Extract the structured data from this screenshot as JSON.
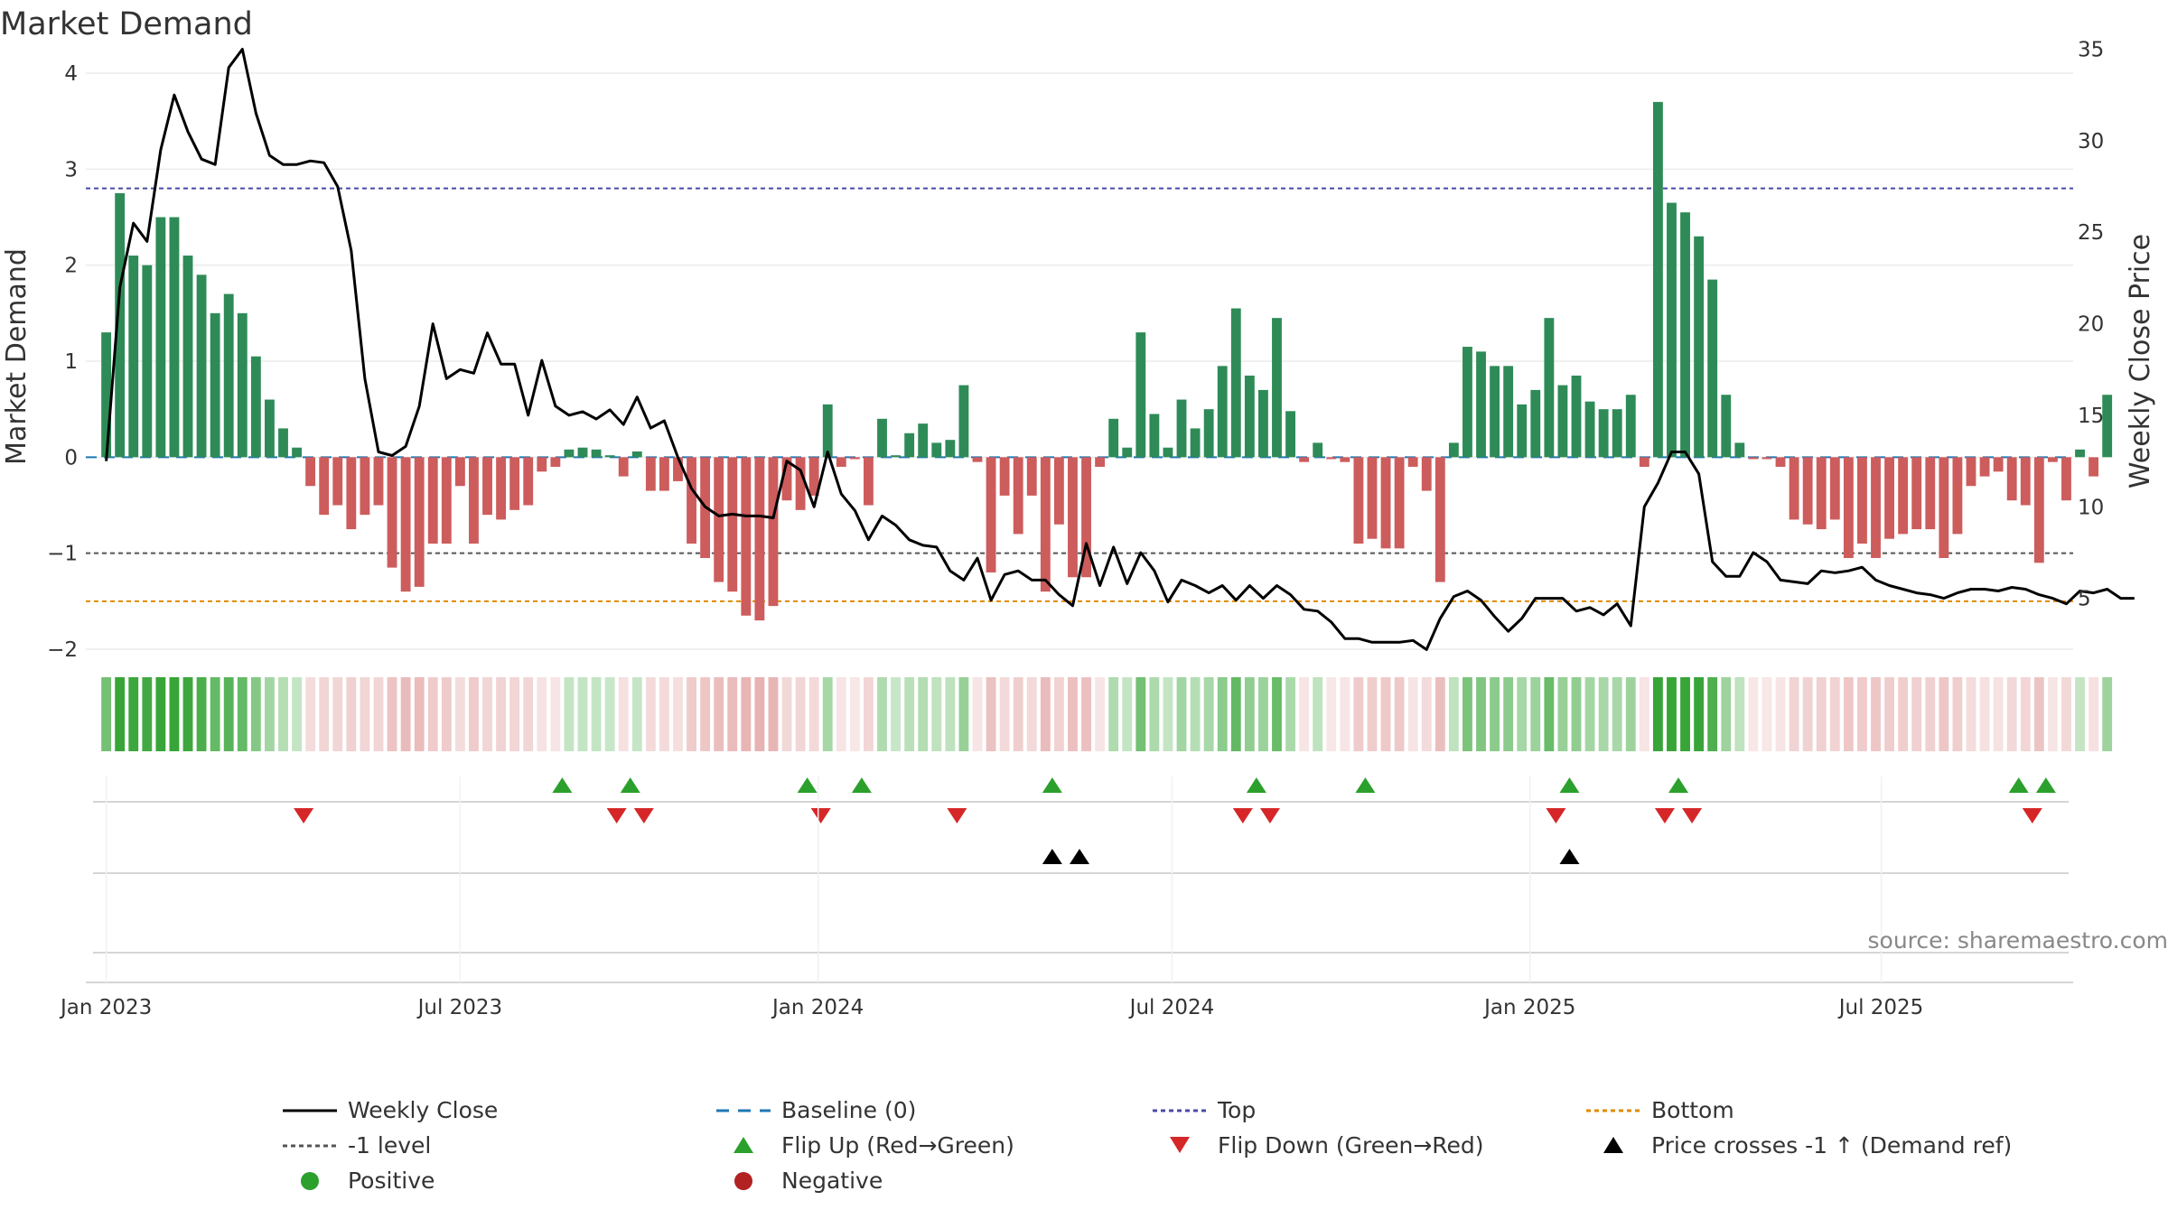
{
  "chart_data": {
    "type": "bar+line",
    "title": "Market Demand",
    "ylabel_left": "Market Demand",
    "ylabel_right": "Weekly Close Price",
    "ylim_left": [
      -2,
      4
    ],
    "yticks_left": [
      "−2",
      "−1",
      "0",
      "1",
      "2",
      "3",
      "4"
    ],
    "yticks_left_values": [
      -2,
      -1,
      0,
      1,
      2,
      3,
      4
    ],
    "ylim_right": [
      0,
      37
    ],
    "yticks_right": [
      "5",
      "10",
      "15",
      "20",
      "25",
      "30",
      "35"
    ],
    "yticks_right_values": [
      5,
      10,
      15,
      20,
      25,
      30,
      35
    ],
    "x_week_range": [
      -1.5,
      144.5
    ],
    "xticks": [
      {
        "label": "Jan 2023",
        "week": 0
      },
      {
        "label": "Jul 2023",
        "week": 26
      },
      {
        "label": "Jan 2024",
        "week": 52.3
      },
      {
        "label": "Jul 2024",
        "week": 78.3
      },
      {
        "label": "Jan 2025",
        "week": 104.6
      },
      {
        "label": "Jul 2025",
        "week": 130.4
      }
    ],
    "reference_lines": {
      "top": 2.8,
      "minus_one": -1,
      "bottom": -1.5,
      "baseline": 0
    },
    "demand": [
      1.3,
      2.75,
      2.1,
      2.0,
      2.5,
      2.5,
      2.1,
      1.9,
      1.5,
      1.7,
      1.5,
      1.05,
      0.6,
      0.3,
      0.1,
      -0.3,
      -0.6,
      -0.5,
      -0.75,
      -0.6,
      -0.5,
      -1.15,
      -1.4,
      -1.35,
      -0.9,
      -0.9,
      -0.3,
      -0.9,
      -0.6,
      -0.65,
      -0.55,
      -0.5,
      -0.15,
      -0.1,
      0.08,
      0.1,
      0.08,
      0.02,
      -0.2,
      0.06,
      -0.35,
      -0.35,
      -0.25,
      -0.9,
      -1.05,
      -1.3,
      -1.4,
      -1.65,
      -1.7,
      -1.55,
      -0.45,
      -0.55,
      -0.4,
      0.55,
      -0.1,
      -0.02,
      -0.5,
      0.4,
      0.02,
      0.25,
      0.35,
      0.15,
      0.18,
      0.75,
      -0.05,
      -1.2,
      -0.4,
      -0.8,
      -0.4,
      -1.4,
      -0.7,
      -1.25,
      -1.25,
      -0.1,
      0.4,
      0.1,
      1.3,
      0.45,
      0.1,
      0.6,
      0.3,
      0.5,
      0.95,
      1.55,
      0.85,
      0.7,
      1.45,
      0.48,
      -0.05,
      0.15,
      -0.02,
      -0.05,
      -0.9,
      -0.85,
      -0.95,
      -0.95,
      -0.1,
      -0.35,
      -1.3,
      0.15,
      1.15,
      1.1,
      0.95,
      0.95,
      0.55,
      0.7,
      1.45,
      0.75,
      0.85,
      0.58,
      0.5,
      0.5,
      0.65,
      -0.1,
      3.7,
      2.65,
      2.55,
      2.3,
      1.85,
      0.65,
      0.15,
      -0.02,
      -0.02,
      -0.1,
      -0.65,
      -0.7,
      -0.75,
      -0.65,
      -1.05,
      -0.9,
      -1.05,
      -0.85,
      -0.8,
      -0.75,
      -0.75,
      -1.05,
      -0.8,
      -0.3,
      -0.2,
      -0.15,
      -0.45,
      -0.5,
      -1.1,
      -0.05,
      -0.45,
      0.08,
      -0.2,
      0.65
    ],
    "weekly_close": [
      12.5,
      22.0,
      25.5,
      24.5,
      29.5,
      32.5,
      30.5,
      29.0,
      28.7,
      34.0,
      35.0,
      31.5,
      29.2,
      28.7,
      28.7,
      28.9,
      28.8,
      27.5,
      24.0,
      17.0,
      13.0,
      12.8,
      13.3,
      15.5,
      20.0,
      17.0,
      17.5,
      17.3,
      19.5,
      17.8,
      17.8,
      15.0,
      18.0,
      15.5,
      15.0,
      15.2,
      14.8,
      15.3,
      14.5,
      16.0,
      14.3,
      14.7,
      12.7,
      11.0,
      10.0,
      9.5,
      9.6,
      9.5,
      9.5,
      9.4,
      12.5,
      12.0,
      10.0,
      13.0,
      10.7,
      9.8,
      8.2,
      9.5,
      9.0,
      8.2,
      7.9,
      7.8,
      6.5,
      6.0,
      7.2,
      4.9,
      6.3,
      6.5,
      6.0,
      6.0,
      5.2,
      4.6,
      8.0,
      5.7,
      7.8,
      5.8,
      7.5,
      6.5,
      4.8,
      6.0,
      5.7,
      5.3,
      5.7,
      4.9,
      5.7,
      5.0,
      5.7,
      5.2,
      4.4,
      4.3,
      3.7,
      2.8,
      2.8,
      2.6,
      2.6,
      2.6,
      2.7,
      2.2,
      3.9,
      5.1,
      5.4,
      4.9,
      4.0,
      3.2,
      3.9,
      5.0,
      5.0,
      5.0,
      4.3,
      4.5,
      4.1,
      4.7,
      3.5,
      10.0,
      11.3,
      13.0,
      13.0,
      11.8,
      7.0,
      6.2,
      6.2,
      7.5,
      7.0,
      6.0,
      5.9,
      5.8,
      6.5,
      6.4,
      6.5,
      6.7,
      6.0,
      5.7,
      5.5,
      5.3,
      5.2,
      5.0,
      5.3,
      5.5,
      5.5,
      5.4,
      5.6,
      5.5,
      5.2,
      5.0,
      4.7,
      5.4,
      5.3,
      5.5,
      5.0,
      5.0
    ],
    "flip_up_weeks": [
      33.5,
      38.5,
      51.5,
      55.5,
      69.5,
      84.5,
      92.5,
      107.5,
      115.5,
      140.5,
      142.5
    ],
    "flip_down_weeks": [
      14.5,
      37.5,
      39.5,
      52.5,
      62.5,
      83.5,
      85.5,
      106.5,
      114.5,
      116.5,
      141.5
    ],
    "price_cross_weeks": [
      69.5,
      71.5,
      107.5
    ],
    "legend": [
      {
        "label": "Weekly Close",
        "color": "#000000",
        "kind": "line"
      },
      {
        "label": "Baseline (0)",
        "color": "#1f77b4",
        "kind": "dash"
      },
      {
        "label": "Top",
        "color": "#4a4aa8",
        "kind": "dot"
      },
      {
        "label": "Bottom",
        "color": "#e08a00",
        "kind": "dot"
      },
      {
        "label": "-1 level",
        "color": "#555555",
        "kind": "dot"
      },
      {
        "label": "Flip Up (Red→Green)",
        "color": "#2ca02c",
        "kind": "up"
      },
      {
        "label": "Flip Down (Green→Red)",
        "color": "#d62728",
        "kind": "down"
      },
      {
        "label": "Price crosses -1 ↑ (Demand ref)",
        "color": "#000000",
        "kind": "up"
      },
      {
        "label": "Positive",
        "color": "#2ca02c",
        "kind": "circle"
      },
      {
        "label": "Negative",
        "color": "#b22222",
        "kind": "circle"
      }
    ]
  },
  "colors": {
    "positive_bar": "#2e8b57",
    "negative_bar": "#cd5c5c",
    "flip_up": "#2ca02c",
    "flip_down": "#d62728",
    "price_cross": "#000000"
  },
  "source": "source: sharemaestro.com"
}
